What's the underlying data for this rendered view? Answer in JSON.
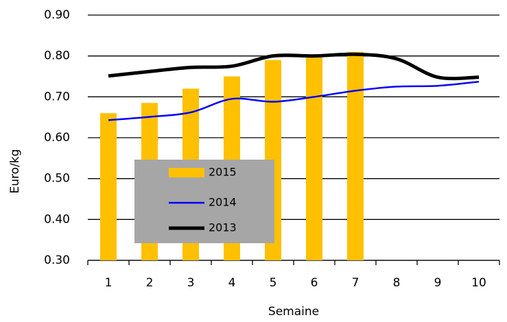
{
  "chart_data": {
    "type": "bar-line",
    "y_label": "Euro/kg",
    "x_label": "Semaine",
    "categories": [
      "1",
      "2",
      "3",
      "4",
      "5",
      "6",
      "7",
      "8",
      "9",
      "10"
    ],
    "series": [
      {
        "name": "2015",
        "type": "bar",
        "color": "#ffc000",
        "values": [
          0.66,
          0.685,
          0.72,
          0.75,
          0.79,
          0.8,
          0.81,
          null,
          null,
          null
        ]
      },
      {
        "name": "2014",
        "type": "line",
        "color": "#0000ff",
        "values": [
          0.643,
          0.651,
          0.662,
          0.695,
          0.688,
          0.7,
          0.715,
          0.725,
          0.727,
          0.737
        ]
      },
      {
        "name": "2013",
        "type": "line",
        "color": "#000000",
        "values": [
          0.751,
          0.762,
          0.772,
          0.775,
          0.8,
          0.8,
          0.804,
          0.793,
          0.748,
          0.748
        ]
      }
    ],
    "ylim": [
      0.3,
      0.9
    ],
    "yticks": [
      {
        "value": 0.3,
        "label": "0.30"
      },
      {
        "value": 0.4,
        "label": "0.40"
      },
      {
        "value": 0.5,
        "label": "0.50"
      },
      {
        "value": 0.6,
        "label": "0.60"
      },
      {
        "value": 0.7,
        "label": "0.70"
      },
      {
        "value": 0.8,
        "label": "0.80"
      },
      {
        "value": 0.9,
        "label": "0.90"
      }
    ],
    "grid": true,
    "legend_background": "#a6a6a6"
  }
}
